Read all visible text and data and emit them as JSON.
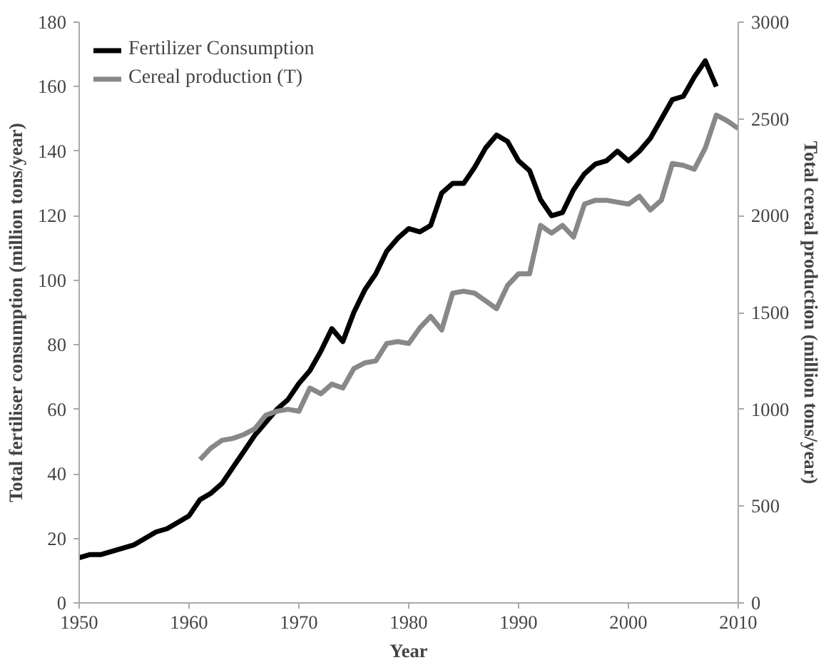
{
  "chart_data": {
    "type": "line",
    "xlabel": "Year",
    "ylabel": "Total fertiliser consumption (million tons/year)",
    "y2label": "Total cereal production (million tons/year)",
    "xlim": [
      1950,
      2010
    ],
    "xticks": [
      1950,
      1960,
      1970,
      1980,
      1990,
      2000,
      2010
    ],
    "ylim": [
      0,
      180
    ],
    "yticks": [
      0,
      20,
      40,
      60,
      80,
      100,
      120,
      140,
      160,
      180
    ],
    "y2lim": [
      0,
      3000
    ],
    "y2ticks": [
      0,
      500,
      1000,
      1500,
      2000,
      2500,
      3000
    ],
    "grid": false,
    "legend": "top left",
    "marker": "none",
    "line_style": "solid",
    "series": [
      {
        "name": "Fertilizer Consumption",
        "color": "#000000",
        "x": [
          1950,
          1951,
          1952,
          1953,
          1954,
          1955,
          1956,
          1957,
          1958,
          1959,
          1960,
          1961,
          1962,
          1963,
          1964,
          1965,
          1966,
          1967,
          1968,
          1969,
          1970,
          1971,
          1972,
          1973,
          1974,
          1975,
          1976,
          1977,
          1978,
          1979,
          1980,
          1981,
          1982,
          1983,
          1984,
          1985,
          1986,
          1987,
          1988,
          1989,
          1990,
          1991,
          1992,
          1993,
          1994,
          1995,
          1996,
          1997,
          1998,
          1999,
          2000,
          2001,
          2002,
          2003,
          2004,
          2005,
          2006,
          2007,
          2008
        ],
        "values": [
          14,
          15,
          15,
          16,
          17,
          18,
          20,
          22,
          23,
          25,
          27,
          32,
          34,
          37,
          42,
          47,
          52,
          56,
          60,
          63,
          68,
          72,
          78,
          85,
          81,
          90,
          97,
          102,
          109,
          113,
          116,
          115,
          117,
          127,
          130,
          130,
          135,
          141,
          145,
          143,
          137,
          134,
          125,
          120,
          121,
          128,
          133,
          136,
          137,
          140,
          137,
          140,
          144,
          150,
          156,
          157,
          163,
          168,
          160
        ]
      },
      {
        "name": "Cereal production (T)",
        "color": "#888888",
        "axis": "y2",
        "x": [
          1961,
          1962,
          1963,
          1964,
          1965,
          1966,
          1967,
          1968,
          1969,
          1970,
          1971,
          1972,
          1973,
          1974,
          1975,
          1976,
          1977,
          1978,
          1979,
          1980,
          1981,
          1982,
          1983,
          1984,
          1985,
          1986,
          1987,
          1988,
          1989,
          1990,
          1991,
          1992,
          1993,
          1994,
          1995,
          1996,
          1997,
          1998,
          1999,
          2000,
          2001,
          2002,
          2003,
          2004,
          2005,
          2006,
          2007,
          2008,
          2009,
          2010
        ],
        "values": [
          740,
          800,
          840,
          850,
          870,
          900,
          970,
          990,
          1000,
          990,
          1110,
          1080,
          1130,
          1110,
          1210,
          1240,
          1250,
          1340,
          1350,
          1340,
          1420,
          1480,
          1410,
          1600,
          1610,
          1600,
          1560,
          1520,
          1640,
          1700,
          1700,
          1950,
          1910,
          1950,
          1890,
          2060,
          2080,
          2080,
          2070,
          2060,
          2100,
          2030,
          2080,
          2270,
          2260,
          2240,
          2350,
          2520,
          2490,
          2450
        ]
      }
    ]
  }
}
